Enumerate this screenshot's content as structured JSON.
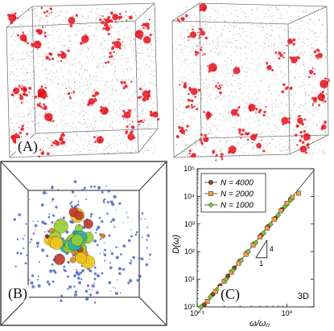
{
  "figure": {
    "labels": {
      "a": "(A)",
      "b": "(B)",
      "c": "(C)"
    },
    "colors": {
      "cluster": "#e3121b",
      "dots": "#333333",
      "box": "#777777",
      "b_dots": "#3a56b8"
    }
  },
  "chart_data": {
    "type": "scatter",
    "xscale": "log",
    "yscale": "log",
    "xlabel": "ω/ω₀",
    "ylabel": "D(ω)",
    "xlim": [
      0.1,
      2.0
    ],
    "ylim": [
      1,
      100000
    ],
    "xticks": [
      {
        "value": 0.1,
        "label": "10⁻¹"
      },
      {
        "value": 1,
        "label": "10⁰"
      }
    ],
    "yticks": [
      {
        "value": 1,
        "label": "10⁰"
      },
      {
        "value": 10,
        "label": "10¹"
      },
      {
        "value": 100,
        "label": "10²"
      },
      {
        "value": 1000,
        "label": "10³"
      },
      {
        "value": 10000,
        "label": "10⁴"
      },
      {
        "value": 100000,
        "label": "10⁵"
      }
    ],
    "annotation": "3D",
    "slope_label": "4",
    "slope_base_label": "1",
    "reference_line": {
      "slope": 4,
      "points": [
        [
          0.1,
          0.55
        ],
        [
          2.0,
          88000
        ]
      ]
    },
    "series": [
      {
        "name": "N = 4000",
        "marker": "circle",
        "color": "#8b4513",
        "points": [
          [
            0.12,
            1.2
          ],
          [
            0.15,
            2.9
          ],
          [
            0.18,
            5.8
          ],
          [
            0.22,
            13
          ],
          [
            0.26,
            26
          ],
          [
            0.3,
            46
          ],
          [
            0.36,
            92
          ],
          [
            0.43,
            190
          ],
          [
            0.52,
            400
          ],
          [
            0.62,
            820
          ],
          [
            0.74,
            1600
          ],
          [
            0.88,
            3300
          ],
          [
            1.0,
            5400
          ],
          [
            1.1,
            7800
          ]
        ]
      },
      {
        "name": "N = 2000",
        "marker": "square",
        "color": "#f5a03c",
        "points": [
          [
            0.13,
            1.6
          ],
          [
            0.16,
            3.6
          ],
          [
            0.2,
            8.5
          ],
          [
            0.24,
            18
          ],
          [
            0.29,
            38
          ],
          [
            0.35,
            80
          ],
          [
            0.42,
            170
          ],
          [
            0.5,
            340
          ],
          [
            0.6,
            700
          ],
          [
            0.72,
            1450
          ],
          [
            0.86,
            3000
          ],
          [
            1.0,
            5600
          ],
          [
            1.15,
            9200
          ],
          [
            1.35,
            13000
          ]
        ]
      },
      {
        "name": "N = 1000",
        "marker": "diamond",
        "color": "#7cbf3a",
        "points": [
          [
            0.11,
            1.0
          ],
          [
            0.14,
            2.3
          ],
          [
            0.17,
            4.6
          ],
          [
            0.21,
            10
          ],
          [
            0.25,
            21
          ],
          [
            0.31,
            48
          ],
          [
            0.37,
            100
          ],
          [
            0.45,
            210
          ],
          [
            0.55,
            470
          ],
          [
            0.66,
            980
          ],
          [
            0.8,
            2100
          ],
          [
            0.95,
            4300
          ],
          [
            1.1,
            7200
          ]
        ]
      }
    ]
  }
}
